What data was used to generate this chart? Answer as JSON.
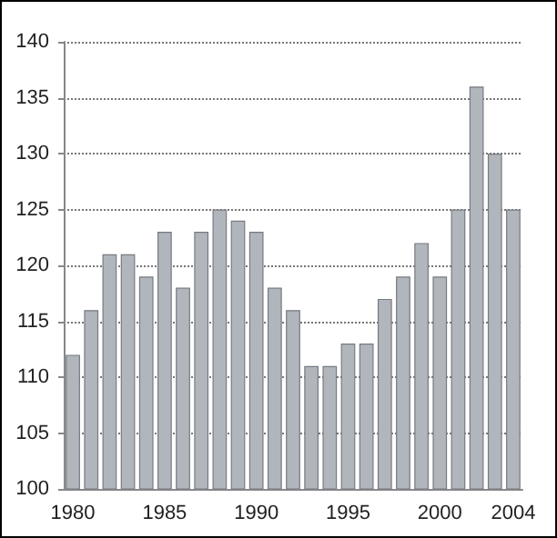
{
  "chart_data": {
    "type": "bar",
    "categories": [
      "1980",
      null,
      null,
      null,
      null,
      "1985",
      null,
      null,
      null,
      null,
      "1990",
      null,
      null,
      null,
      null,
      "1995",
      null,
      null,
      null,
      null,
      "2000",
      null,
      null,
      null,
      "2004"
    ],
    "values": [
      112,
      116,
      121,
      121,
      119,
      123,
      118,
      123,
      125,
      124,
      123,
      118,
      116,
      111,
      111,
      113,
      113,
      117,
      119,
      122,
      119,
      125,
      136,
      130,
      125
    ],
    "color": "#b1b5bc",
    "ylim": [
      100,
      140
    ],
    "yticks": [
      100,
      105,
      110,
      115,
      120,
      125,
      130,
      135,
      140
    ],
    "grid": "y"
  }
}
